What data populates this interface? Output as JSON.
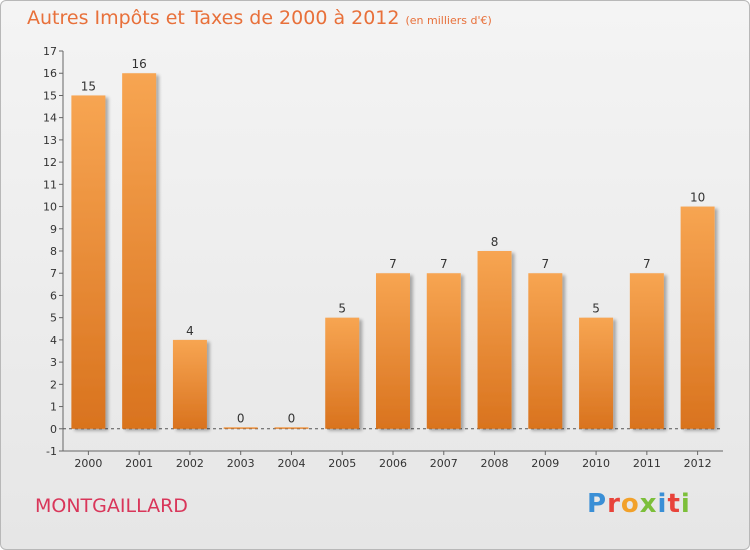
{
  "header": {
    "title": "Autres Impôts et Taxes de 2000 à 2012",
    "unit": "(en milliers d'€)"
  },
  "footer": {
    "place": "MONTGAILLARD",
    "brand": "Proxiti"
  },
  "colors": {
    "title": "#e8703a",
    "place": "#d9365a",
    "bar_top": "#f7a552",
    "bar_bottom": "#d9731e"
  },
  "chart_data": {
    "type": "bar",
    "categories": [
      "2000",
      "2001",
      "2002",
      "2003",
      "2004",
      "2005",
      "2006",
      "2007",
      "2008",
      "2009",
      "2010",
      "2011",
      "2012"
    ],
    "values": [
      15,
      16,
      4,
      0,
      0,
      5,
      7,
      7,
      8,
      7,
      5,
      7,
      10
    ],
    "value_labels": [
      "15",
      "16",
      "4",
      "0",
      "0",
      "5",
      "7",
      "7",
      "8",
      "7",
      "5",
      "7",
      "10"
    ],
    "title": "Autres Impôts et Taxes de 2000 à 2012",
    "xlabel": "",
    "ylabel": "",
    "ylim": [
      -1,
      17
    ],
    "yticks": [
      -1,
      0,
      1,
      2,
      3,
      4,
      5,
      6,
      7,
      8,
      9,
      10,
      11,
      12,
      13,
      14,
      15,
      16,
      17
    ],
    "grid": false,
    "legend": "none"
  }
}
